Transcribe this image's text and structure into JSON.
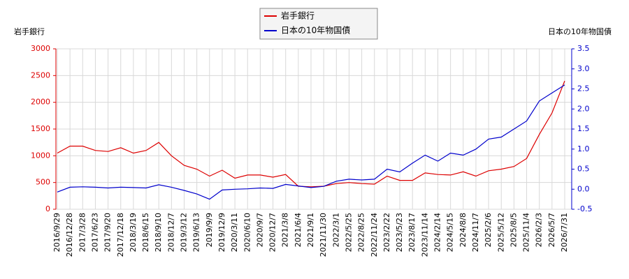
{
  "chart_data": {
    "type": "line",
    "y_label": "岩手銀行",
    "y2_label": "日本の10年物国債",
    "categories": [
      "2016/9/29",
      "2016/12/28",
      "2017/3/28",
      "2017/6/23",
      "2017/9/20",
      "2017/12/18",
      "2018/3/19",
      "2018/6/15",
      "2018/9/10",
      "2018/12/7",
      "2019/3/12",
      "2019/6/13",
      "2019/9/9",
      "2019/12/9",
      "2020/3/11",
      "2020/6/10",
      "2020/9/7",
      "2020/12/7",
      "2021/3/8",
      "2021/6/4",
      "2021/9/1",
      "2021/11/30",
      "2022/3/1",
      "2022/5/25",
      "2022/8/25",
      "2022/11/24",
      "2023/2/22",
      "2023/5/23",
      "2023/8/17",
      "2023/11/14",
      "2024/2/14",
      "2024/5/15",
      "2024/8/8",
      "2024/11/7",
      "2025/2/6",
      "2025/5/12",
      "2025/8/5",
      "2025/11/4",
      "2026/2/3",
      "2026/5/7",
      "2026/7/31"
    ],
    "series": [
      {
        "name": "岩手銀行",
        "color": "#dd0000",
        "axis": "y",
        "values": [
          1050,
          1180,
          1180,
          1100,
          1080,
          1150,
          1050,
          1100,
          1250,
          1000,
          820,
          750,
          620,
          730,
          580,
          640,
          640,
          600,
          650,
          430,
          420,
          430,
          480,
          500,
          480,
          470,
          620,
          540,
          540,
          680,
          650,
          640,
          700,
          620,
          720,
          750,
          800,
          950,
          1400,
          1800,
          2400
        ]
      },
      {
        "name": "日本の10年物国債",
        "color": "#0000cc",
        "axis": "y2",
        "values": [
          -0.07,
          0.05,
          0.06,
          0.05,
          0.03,
          0.05,
          0.04,
          0.03,
          0.11,
          0.05,
          -0.03,
          -0.12,
          -0.25,
          -0.02,
          0.0,
          0.01,
          0.03,
          0.02,
          0.12,
          0.08,
          0.04,
          0.07,
          0.2,
          0.25,
          0.23,
          0.25,
          0.5,
          0.43,
          0.65,
          0.85,
          0.7,
          0.9,
          0.85,
          1.0,
          1.25,
          1.3,
          1.5,
          1.7,
          2.2,
          2.4,
          2.6
        ]
      }
    ],
    "ylim": [
      0,
      3000
    ],
    "yticks": [
      0,
      500,
      1000,
      1500,
      2000,
      2500,
      3000
    ],
    "y2lim": [
      -0.5,
      3.5
    ],
    "y2ticks": [
      -0.5,
      {
        "value": 0,
        "label": "0.0"
      },
      0.5,
      {
        "value": 1,
        "label": "1.0"
      },
      1.5,
      {
        "value": 2,
        "label": "2.0"
      },
      2.5,
      {
        "value": 3,
        "label": "3.0"
      },
      3.5
    ],
    "grid": true
  }
}
